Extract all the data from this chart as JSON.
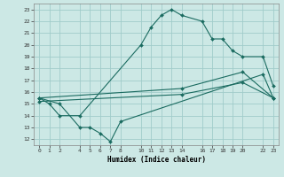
{
  "xlabel": "Humidex (Indice chaleur)",
  "background_color": "#cce8e5",
  "grid_color": "#a0ccca",
  "line_color": "#1a6b60",
  "xlim": [
    -0.5,
    23.5
  ],
  "ylim": [
    11.5,
    23.5
  ],
  "x_ticks": [
    0,
    1,
    2,
    4,
    5,
    6,
    7,
    8,
    10,
    11,
    12,
    13,
    14,
    16,
    17,
    18,
    19,
    20,
    22,
    23
  ],
  "y_ticks": [
    12,
    13,
    14,
    15,
    16,
    17,
    18,
    19,
    20,
    21,
    22,
    23
  ],
  "series": [
    {
      "x": [
        0,
        1,
        2,
        4,
        10,
        11,
        12,
        13,
        14,
        16,
        17,
        18,
        19,
        20,
        22,
        23
      ],
      "y": [
        15.5,
        15.0,
        14.0,
        14.0,
        20.0,
        21.5,
        22.5,
        23.0,
        22.5,
        22.0,
        20.5,
        20.5,
        19.5,
        19.0,
        19.0,
        16.5
      ]
    },
    {
      "x": [
        0,
        2,
        4,
        5,
        6,
        7,
        8,
        22,
        23
      ],
      "y": [
        15.5,
        15.0,
        13.0,
        13.0,
        12.5,
        11.8,
        13.5,
        17.5,
        15.5
      ]
    },
    {
      "x": [
        0,
        14,
        20,
        23
      ],
      "y": [
        15.5,
        16.3,
        17.7,
        15.5
      ]
    },
    {
      "x": [
        0,
        14,
        20,
        23
      ],
      "y": [
        15.2,
        15.8,
        16.8,
        15.5
      ]
    }
  ]
}
